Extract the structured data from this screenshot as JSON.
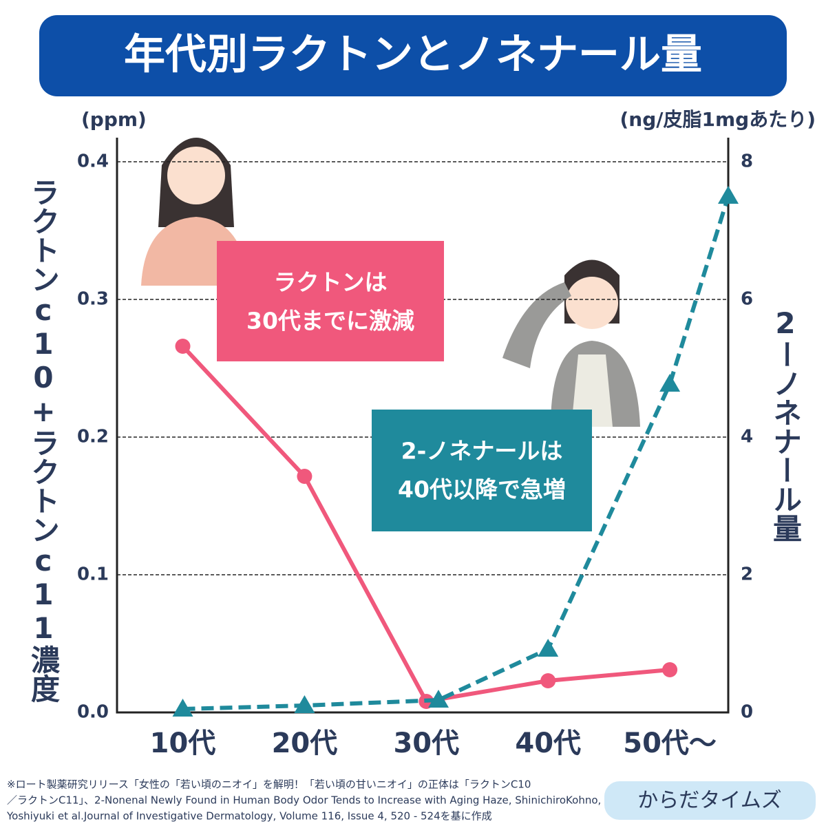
{
  "chart_data": {
    "type": "line",
    "title": "年代別ラクトンとノネナール量",
    "y_unit": "(ppm)",
    "y2_unit": "(ng/皮脂1mgあたり)",
    "y_label": "ラクトンc10+ラクトンc11濃度",
    "y2_label": "2ーノネナール量",
    "xlim": [
      -0.54,
      4.48
    ],
    "xticks": [
      {
        "value": 0,
        "label": "10代"
      },
      {
        "value": 1,
        "label": "20代"
      },
      {
        "value": 2,
        "label": "30代"
      },
      {
        "value": 3,
        "label": "40代"
      },
      {
        "value": 4,
        "label": "50代〜"
      }
    ],
    "ylim": [
      0,
      0.4175
    ],
    "yticks": [
      {
        "value": 0,
        "label": "0.0"
      },
      0.1,
      0.2,
      0.3,
      0.4
    ],
    "y2lim": [
      0,
      8.35
    ],
    "y2ticks": [
      0,
      2,
      4,
      6,
      8
    ],
    "grid": true,
    "series": [
      {
        "name": "ラクトン",
        "color": "#f0587c",
        "marker": "circle",
        "dashed": false,
        "x": [
          0,
          1,
          2,
          3,
          4
        ],
        "values": [
          0.266,
          0.1715,
          0.008,
          0.023,
          0.031
        ]
      },
      {
        "name": "2-ノネナール",
        "color": "#1f8a9c",
        "marker": "triangle",
        "dashed": true,
        "axis": "y2",
        "x": [
          0,
          1,
          2.1,
          3,
          4,
          4.48
        ],
        "values": [
          0.05,
          0.1,
          0.18,
          0.92,
          4.77,
          7.5
        ]
      }
    ],
    "annotations": [
      {
        "lines": [
          "ラクトンは",
          "30代までに激減"
        ],
        "color": "#f0587c"
      },
      {
        "lines": [
          "2-ノネナールは",
          "40代以降で急増"
        ],
        "color": "#1f8a9c"
      }
    ],
    "source": [
      "※ロート製薬研究リリース「女性の「若い頃のニオイ」を解明！「若い頃の甘いニオイ」の正体は「ラクトンC10",
      "／ラクトンC11」、2-Nonenal Newly Found in Human Body Odor Tends to Increase with Aging Haze, ShinichiroKohno,",
      "Yoshiyuki et al.Journal of Investigative Dermatology, Volume 116, Issue 4, 520 - 524を基に作成"
    ],
    "brand": "からだタイムズ"
  }
}
